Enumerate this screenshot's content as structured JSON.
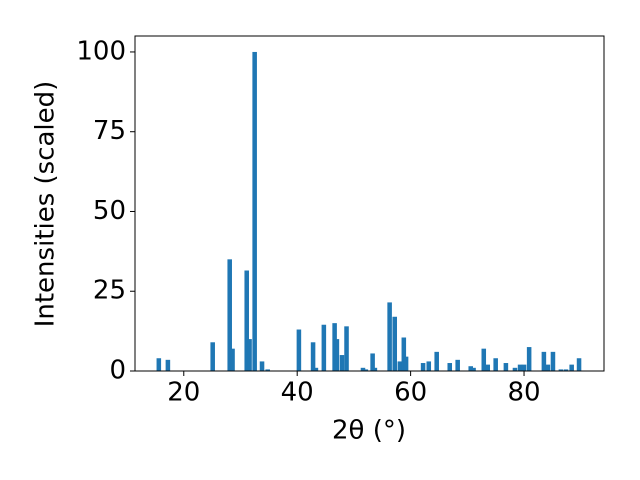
{
  "chart_data": {
    "type": "bar",
    "xlabel": "2θ (°)",
    "ylabel": "Intensities (scaled)",
    "x": [
      15.6,
      17.2,
      25.1,
      28.1,
      28.6,
      31.1,
      31.6,
      32.5,
      33.8,
      34.8,
      40.3,
      42.8,
      43.3,
      44.7,
      46.6,
      47.0,
      47.9,
      48.7,
      51.6,
      52.1,
      53.3,
      53.7,
      56.3,
      57.2,
      58.1,
      58.8,
      59.2,
      62.2,
      63.2,
      64.6,
      66.9,
      68.3,
      70.6,
      71.1,
      72.9,
      73.6,
      75.0,
      76.8,
      78.4,
      79.3,
      80.0,
      80.9,
      83.5,
      84.2,
      85.1,
      86.5,
      87.4,
      88.4,
      89.7
    ],
    "values": [
      4,
      3.5,
      9,
      35,
      7,
      31.5,
      10,
      100,
      3,
      0.5,
      13,
      9,
      1,
      14.5,
      15,
      10,
      5,
      14,
      1,
      0.5,
      5.5,
      1,
      21.5,
      17,
      3,
      10.5,
      4.5,
      2.5,
      3,
      6,
      2.5,
      3.5,
      1.5,
      1,
      7,
      2,
      4,
      2.5,
      1,
      2,
      2,
      7.5,
      6,
      2,
      6,
      0.5,
      0.5,
      2,
      4
    ],
    "color": "#1f77b4",
    "xlim": [
      11.4,
      94.1
    ],
    "ylim": [
      0,
      105
    ],
    "xticks": [
      20,
      40,
      60,
      80
    ],
    "yticks": [
      0,
      25,
      50,
      75,
      100
    ],
    "grid": false
  }
}
